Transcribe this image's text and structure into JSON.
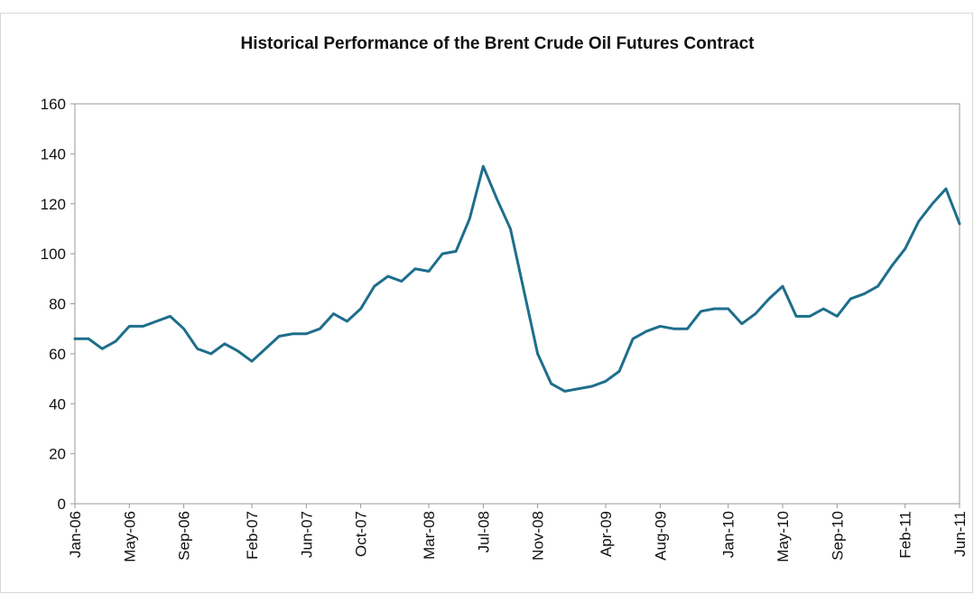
{
  "chart_data": {
    "type": "line",
    "title": "Historical Performance of the Brent Crude Oil Futures Contract",
    "categories": [
      "Jan-06",
      null,
      null,
      null,
      "May-06",
      null,
      null,
      null,
      "Sep-06",
      null,
      null,
      null,
      null,
      "Feb-07",
      null,
      null,
      null,
      "Jun-07",
      null,
      null,
      null,
      "Oct-07",
      null,
      null,
      null,
      null,
      "Mar-08",
      null,
      null,
      null,
      "Jul-08",
      null,
      null,
      null,
      "Nov-08",
      null,
      null,
      null,
      null,
      "Apr-09",
      null,
      null,
      null,
      "Aug-09",
      null,
      null,
      null,
      null,
      "Jan-10",
      null,
      null,
      null,
      "May-10",
      null,
      null,
      null,
      "Sep-10",
      null,
      null,
      null,
      null,
      "Feb-11",
      null,
      null,
      null,
      "Jun-11"
    ],
    "series": [
      {
        "color": "#1e6e8c",
        "values": [
          66,
          66,
          62,
          65,
          71,
          71,
          73,
          75,
          70,
          62,
          60,
          64,
          61,
          57,
          62,
          67,
          68,
          68,
          70,
          76,
          73,
          78,
          87,
          91,
          89,
          94,
          93,
          100,
          101,
          114,
          135,
          122,
          110,
          85,
          60,
          48,
          45,
          46,
          47,
          49,
          53,
          66,
          69,
          71,
          70,
          70,
          77,
          78,
          78,
          72,
          76,
          82,
          87,
          75,
          75,
          78,
          75,
          82,
          84,
          87,
          95,
          102,
          113,
          120,
          126,
          112
        ]
      }
    ],
    "ylim": [
      0,
      160
    ],
    "yticks": [
      0,
      20,
      40,
      60,
      80,
      100,
      120,
      140,
      160
    ],
    "grid": false
  }
}
